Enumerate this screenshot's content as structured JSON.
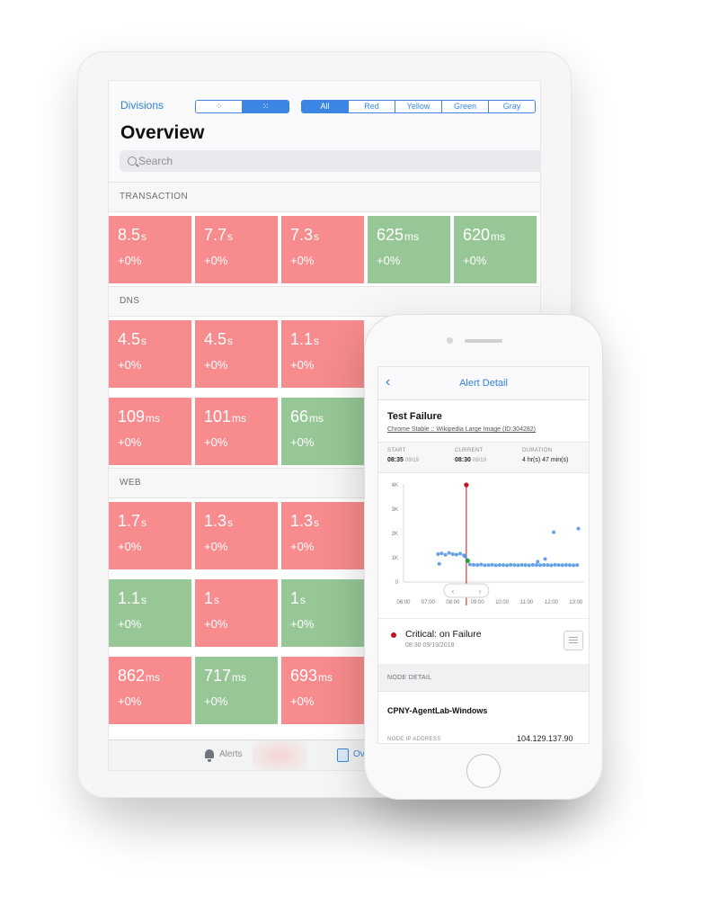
{
  "tablet": {
    "divisions_label": "Divisions",
    "view_toggle": [
      "▪▪",
      "▪▪▪"
    ],
    "filters": [
      "All",
      "Red",
      "Yellow",
      "Green",
      "Gray"
    ],
    "active_filter": "All",
    "title": "Overview",
    "search_placeholder": "Search",
    "sections": [
      {
        "label": "TRANSACTION",
        "rows": [
          [
            {
              "value": "8.5",
              "unit": "s",
              "change": "+0%",
              "status": "red"
            },
            {
              "value": "7.7",
              "unit": "s",
              "change": "+0%",
              "status": "red"
            },
            {
              "value": "7.3",
              "unit": "s",
              "change": "+0%",
              "status": "red"
            },
            {
              "value": "625",
              "unit": "ms",
              "change": "+0%",
              "status": "green"
            },
            {
              "value": "620",
              "unit": "ms",
              "change": "+0%",
              "status": "green"
            }
          ]
        ]
      },
      {
        "label": "DNS",
        "rows": [
          [
            {
              "value": "4.5",
              "unit": "s",
              "change": "+0%",
              "status": "red"
            },
            {
              "value": "4.5",
              "unit": "s",
              "change": "+0%",
              "status": "red"
            },
            {
              "value": "1.1",
              "unit": "s",
              "change": "+0%",
              "status": "red"
            }
          ],
          [
            {
              "value": "109",
              "unit": "ms",
              "change": "+0%",
              "status": "red"
            },
            {
              "value": "101",
              "unit": "ms",
              "change": "+0%",
              "status": "red"
            },
            {
              "value": "66",
              "unit": "ms",
              "change": "+0%",
              "status": "green"
            }
          ]
        ]
      },
      {
        "label": "WEB",
        "rows": [
          [
            {
              "value": "1.7",
              "unit": "s",
              "change": "+0%",
              "status": "red"
            },
            {
              "value": "1.3",
              "unit": "s",
              "change": "+0%",
              "status": "red"
            },
            {
              "value": "1.3",
              "unit": "s",
              "change": "+0%",
              "status": "red"
            }
          ],
          [
            {
              "value": "1.1",
              "unit": "s",
              "change": "+0%",
              "status": "green"
            },
            {
              "value": "1",
              "unit": "s",
              "change": "+0%",
              "status": "red"
            },
            {
              "value": "1",
              "unit": "s",
              "change": "+0%",
              "status": "green"
            }
          ],
          [
            {
              "value": "862",
              "unit": "ms",
              "change": "+0%",
              "status": "red"
            },
            {
              "value": "717",
              "unit": "ms",
              "change": "+0%",
              "status": "green"
            },
            {
              "value": "693",
              "unit": "ms",
              "change": "+0%",
              "status": "red"
            }
          ]
        ]
      }
    ],
    "tabbar": {
      "alerts_label": "Alerts",
      "overview_label": "Ov"
    },
    "colors": {
      "red": "#f78b8d",
      "green": "#97c796",
      "accent": "#3b86e5"
    }
  },
  "phone": {
    "nav_title": "Alert Detail",
    "back_icon": "chevron-left-icon",
    "test_title": "Test Failure",
    "test_link": "Chrome Stable :: Wikipedia Large Image (ID:304282)",
    "times": {
      "start": {
        "label": "START",
        "time": "08:35",
        "date": "09/19"
      },
      "current": {
        "label": "CURRENT",
        "time": "08:30",
        "date": "09/19"
      },
      "duration": {
        "label": "DURATION",
        "value": "4 hr(s) 47 min(s)"
      }
    },
    "alert": {
      "title": "Critical: on Failure",
      "time": "08:30 09/19/2018"
    },
    "node_section_label": "NODE DETAIL",
    "node_name": "CPNY-AgentLab-Windows",
    "node_ip_label": "NODE IP ADDRESS",
    "node_ip_value": "104.129.137.90"
  },
  "chart_data": {
    "type": "scatter",
    "x_tick_labels": [
      "06:00",
      "07:00",
      "08:00",
      "09:00",
      "10:00",
      "11:00",
      "12:00",
      "13:00"
    ],
    "y_tick_labels": [
      "0",
      "1K",
      "2K",
      "3K",
      "4K"
    ],
    "ylim": [
      0,
      4000
    ],
    "xlim": [
      6.0,
      13.3
    ],
    "marker_time": 8.55,
    "series": [
      {
        "values": [
          [
            7.4,
            1150
          ],
          [
            7.55,
            1180
          ],
          [
            7.7,
            1120
          ],
          [
            7.85,
            1200
          ],
          [
            8.0,
            1150
          ],
          [
            8.15,
            1130
          ],
          [
            8.3,
            1170
          ],
          [
            8.45,
            1100
          ],
          [
            7.45,
            750
          ],
          [
            8.5,
            1050
          ],
          [
            8.7,
            720
          ],
          [
            8.85,
            710
          ],
          [
            9.0,
            700
          ],
          [
            9.15,
            720
          ],
          [
            9.3,
            690
          ],
          [
            9.45,
            700
          ],
          [
            9.6,
            710
          ],
          [
            9.75,
            690
          ],
          [
            9.9,
            705
          ],
          [
            10.05,
            700
          ],
          [
            10.2,
            690
          ],
          [
            10.35,
            710
          ],
          [
            10.5,
            700
          ],
          [
            10.65,
            695
          ],
          [
            10.8,
            705
          ],
          [
            10.95,
            700
          ],
          [
            11.1,
            690
          ],
          [
            11.25,
            710
          ],
          [
            11.4,
            700
          ],
          [
            11.55,
            695
          ],
          [
            11.7,
            705
          ],
          [
            11.85,
            700
          ],
          [
            12.0,
            690
          ],
          [
            12.15,
            710
          ],
          [
            12.3,
            700
          ],
          [
            12.45,
            695
          ],
          [
            12.6,
            705
          ],
          [
            12.75,
            700
          ],
          [
            12.9,
            690
          ],
          [
            13.05,
            700
          ],
          [
            12.1,
            2050
          ],
          [
            13.1,
            2200
          ],
          [
            11.45,
            840
          ],
          [
            11.75,
            950
          ]
        ]
      },
      {
        "values": [
          [
            8.6,
            880
          ]
        ]
      },
      {
        "values": [
          [
            8.55,
            4000
          ]
        ]
      }
    ],
    "colors": {
      "points": "#4a90e2",
      "green": "#2a9d3c",
      "red": "#c5121a"
    }
  }
}
